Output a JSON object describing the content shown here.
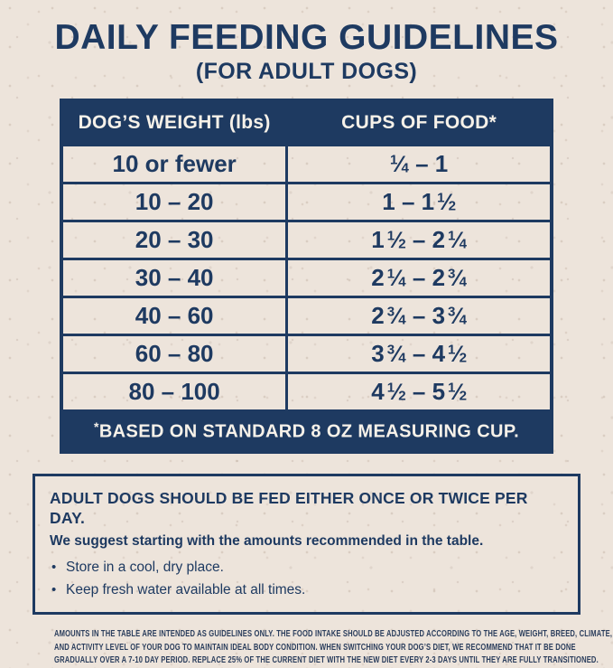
{
  "page": {
    "title": "DAILY FEEDING GUIDELINES",
    "subtitle": "(FOR ADULT DOGS)"
  },
  "colors": {
    "navy": "#1e3a61",
    "background_beige": "#ede4db",
    "table_text_on_navy": "#f6f1e9"
  },
  "table": {
    "col_weight_header": "DOG’S WEIGHT (lbs)",
    "col_cups_header": "CUPS OF FOOD*",
    "rows": [
      {
        "weight": "10 or fewer",
        "cups": "1/4 – 1"
      },
      {
        "weight": "10 – 20",
        "cups": "1 – 1 1/2"
      },
      {
        "weight": "20 – 30",
        "cups": "1 1/2 – 2 1/4"
      },
      {
        "weight": "30 – 40",
        "cups": "2 1/4 – 2 3/4"
      },
      {
        "weight": "40 – 60",
        "cups": "2 3/4 – 3 3/4"
      },
      {
        "weight": "60 – 80",
        "cups": "3 3/4 – 4 1/2"
      },
      {
        "weight": "80 – 100",
        "cups": "4 1/2 – 5 1/2"
      }
    ],
    "footnote_mark": "*",
    "footnote_text": "BASED ON STANDARD 8 OZ MEASURING CUP."
  },
  "info_box": {
    "heading": "ADULT DOGS SHOULD BE FED EITHER ONCE OR TWICE PER DAY.",
    "subheading": "We suggest starting with the amounts recommended in the table.",
    "bullets": [
      "Store in a cool, dry place.",
      "Keep fresh water available at all times."
    ]
  },
  "fine_print_lines": [
    "AMOUNTS IN THE TABLE ARE INTENDED AS GUIDELINES ONLY. THE FOOD INTAKE SHOULD BE ADJUSTED ACCORDING TO THE AGE, WEIGHT, BREED, CLIMATE,",
    "AND ACTIVITY LEVEL OF YOUR DOG TO MAINTAIN IDEAL BODY CONDITION. WHEN SWITCHING YOUR DOG’S DIET, WE RECOMMEND THAT IT BE DONE",
    "GRADUALLY OVER A 7-10 DAY PERIOD. REPLACE 25% OF THE CURRENT DIET WITH THE NEW DIET EVERY 2-3 DAYS UNTIL THEY ARE FULLY TRANSITIONED."
  ]
}
